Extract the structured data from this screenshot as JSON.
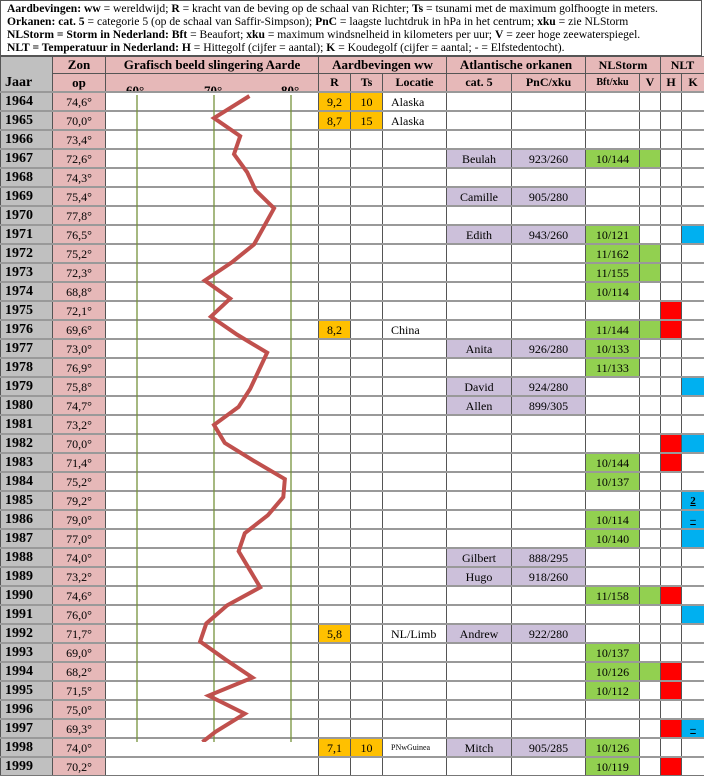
{
  "legend": [
    [
      [
        "Aardbevingen: ww",
        true
      ],
      [
        " = wereldwijd; ",
        false
      ],
      [
        "R",
        true
      ],
      [
        " = kracht van de beving op de schaal van Richter; ",
        false
      ],
      [
        "Ts",
        true
      ],
      [
        " = tsunami met de maximum golfhoogte in meters.",
        false
      ]
    ],
    [
      [
        "Orkanen: cat. 5",
        true
      ],
      [
        " = categorie 5 (op de schaal van Saffir-Simpson); ",
        false
      ],
      [
        "PnC",
        true
      ],
      [
        " = laagste luchtdruk in hPa in het centrum; ",
        false
      ],
      [
        "xku",
        true
      ],
      [
        " = zie NLStorm",
        false
      ]
    ],
    [
      [
        "NLStorm = Storm in Nederland: Bft",
        true
      ],
      [
        " = Beaufort; ",
        false
      ],
      [
        "xku",
        true
      ],
      [
        " = maximum windsnelheid in kilometers per uur; ",
        false
      ],
      [
        "V",
        true
      ],
      [
        " = zeer hoge zeewaterspiegel.",
        false
      ]
    ],
    [
      [
        "NLT = Temperatuur in Nederland: H",
        true
      ],
      [
        " = Hittegolf (cijfer = aantal); ",
        false
      ],
      [
        "K",
        true
      ],
      [
        " = Koudegolf (cijfer = aantal; - = Elfstedentocht).",
        false
      ]
    ]
  ],
  "header": {
    "jaar": "Jaar",
    "zon1": "Zon",
    "zon2": "op",
    "graph": "Grafisch beeld slingering Aarde",
    "ticks": [
      "60°",
      "70°",
      "80°"
    ],
    "aardbevingen": "Aardbevingen ww",
    "r": "R",
    "ts": "Ts",
    "locatie": "Locatie",
    "orkanen": "Atlantische orkanen",
    "cat5": "cat. 5",
    "pnc": "PnC/xku",
    "nlstorm": "NLStorm",
    "bft": "Bft/xku",
    "v": "V",
    "nlt": "NLT",
    "h": "H",
    "k": "K"
  },
  "colors": {
    "year_bg": "#c0c0c0",
    "zon_bg": "#e6b8b8",
    "header_bg": "#e6b8b8",
    "quake": "#ffc000",
    "hurricane": "#ccc0da",
    "storm": "#92d050",
    "heat": "#ff0000",
    "cold": "#00b0f0",
    "curve": "#c0504d",
    "gridline": "#77933c"
  },
  "graph_axis": {
    "ticks": [
      60,
      70,
      80
    ]
  },
  "rows": [
    {
      "jaar": "1964",
      "zon": "74,6°",
      "r": "9,2",
      "ts": "10",
      "loc": "Alaska"
    },
    {
      "jaar": "1965",
      "zon": "70,0°",
      "r": "8,7",
      "ts": "15",
      "loc": "Alaska"
    },
    {
      "jaar": "1966",
      "zon": "73,4°"
    },
    {
      "jaar": "1967",
      "zon": "72,6°",
      "cat5": "Beulah",
      "pnc": "923/260",
      "bft": "10/144",
      "v": true
    },
    {
      "jaar": "1968",
      "zon": "74,3°"
    },
    {
      "jaar": "1969",
      "zon": "75,4°",
      "cat5": "Camille",
      "pnc": "905/280"
    },
    {
      "jaar": "1970",
      "zon": "77,8°"
    },
    {
      "jaar": "1971",
      "zon": "76,5°",
      "cat5": "Edith",
      "pnc": "943/260",
      "bft": "10/121",
      "k": true
    },
    {
      "jaar": "1972",
      "zon": "75,2°",
      "bft": "11/162",
      "v": true
    },
    {
      "jaar": "1973",
      "zon": "72,3°",
      "bft": "11/155",
      "v": true
    },
    {
      "jaar": "1974",
      "zon": "68,8°",
      "bft": "10/114"
    },
    {
      "jaar": "1975",
      "zon": "72,1°",
      "h": true
    },
    {
      "jaar": "1976",
      "zon": "69,6°",
      "r": "8,2",
      "loc": "China",
      "bft": "11/144",
      "v": true,
      "h": true
    },
    {
      "jaar": "1977",
      "zon": "73,0°",
      "cat5": "Anita",
      "pnc": "926/280",
      "bft": "10/133"
    },
    {
      "jaar": "1978",
      "zon": "76,9°",
      "bft": "11/133"
    },
    {
      "jaar": "1979",
      "zon": "75,8°",
      "cat5": "David",
      "pnc": "924/280",
      "k": true
    },
    {
      "jaar": "1980",
      "zon": "74,7°",
      "cat5": "Allen",
      "pnc": "899/305"
    },
    {
      "jaar": "1981",
      "zon": "73,2°"
    },
    {
      "jaar": "1982",
      "zon": "70,0°",
      "h": true,
      "k": true
    },
    {
      "jaar": "1983",
      "zon": "71,4°",
      "bft": "10/144",
      "h": true
    },
    {
      "jaar": "1984",
      "zon": "75,2°",
      "bft": "10/137"
    },
    {
      "jaar": "1985",
      "zon": "79,2°",
      "k": true,
      "k_text": "2"
    },
    {
      "jaar": "1986",
      "zon": "79,0°",
      "bft": "10/114",
      "k": true,
      "k_text": "–"
    },
    {
      "jaar": "1987",
      "zon": "77,0°",
      "bft": "10/140",
      "k": true
    },
    {
      "jaar": "1988",
      "zon": "74,0°",
      "cat5": "Gilbert",
      "pnc": "888/295"
    },
    {
      "jaar": "1989",
      "zon": "73,2°",
      "cat5": "Hugo",
      "pnc": "918/260"
    },
    {
      "jaar": "1990",
      "zon": "74,6°",
      "bft": "11/158",
      "v": true,
      "h": true
    },
    {
      "jaar": "1991",
      "zon": "76,0°",
      "k": true
    },
    {
      "jaar": "1992",
      "zon": "71,7°",
      "r": "5,8",
      "loc": "NL/Limb",
      "cat5": "Andrew",
      "pnc": "922/280"
    },
    {
      "jaar": "1993",
      "zon": "69,0°",
      "bft": "10/137"
    },
    {
      "jaar": "1994",
      "zon": "68,2°",
      "bft": "10/126",
      "v": true,
      "h": true
    },
    {
      "jaar": "1995",
      "zon": "71,5°",
      "bft": "10/112",
      "h": true
    },
    {
      "jaar": "1996",
      "zon": "75,0°"
    },
    {
      "jaar": "1997",
      "zon": "69,3°",
      "h": true,
      "k": true,
      "k_text": "–"
    },
    {
      "jaar": "1998",
      "zon": "74,0°",
      "r": "7,1",
      "ts": "10",
      "loc": "PNwGuinea",
      "cat5": "Mitch",
      "pnc": "905/285",
      "bft": "10/126"
    },
    {
      "jaar": "1999",
      "zon": "70,2°",
      "bft": "10/119",
      "h": true
    }
  ]
}
